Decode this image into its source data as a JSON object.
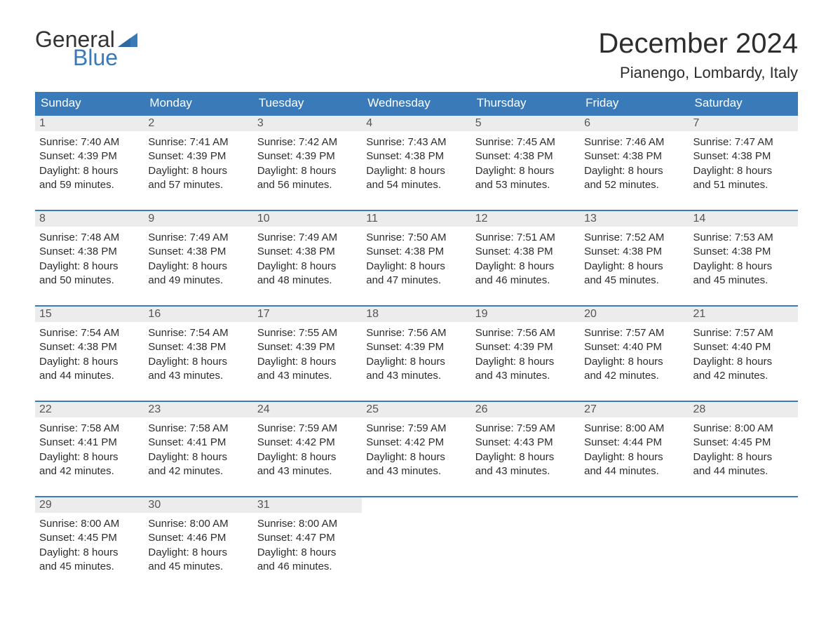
{
  "brand": {
    "general": "General",
    "blue": "Blue",
    "flag_color": "#3a7ab8"
  },
  "title": "December 2024",
  "location": "Pianengo, Lombardy, Italy",
  "colors": {
    "header_bg": "#3a7ab8",
    "header_text": "#ffffff",
    "daynum_bg": "#ececec",
    "daynum_text": "#555555",
    "body_text": "#2d2d2d",
    "border": "#3a7ab8",
    "page_bg": "#ffffff"
  },
  "weekdays": [
    "Sunday",
    "Monday",
    "Tuesday",
    "Wednesday",
    "Thursday",
    "Friday",
    "Saturday"
  ],
  "weeks": [
    [
      {
        "n": "1",
        "sunrise": "Sunrise: 7:40 AM",
        "sunset": "Sunset: 4:39 PM",
        "d1": "Daylight: 8 hours",
        "d2": "and 59 minutes."
      },
      {
        "n": "2",
        "sunrise": "Sunrise: 7:41 AM",
        "sunset": "Sunset: 4:39 PM",
        "d1": "Daylight: 8 hours",
        "d2": "and 57 minutes."
      },
      {
        "n": "3",
        "sunrise": "Sunrise: 7:42 AM",
        "sunset": "Sunset: 4:39 PM",
        "d1": "Daylight: 8 hours",
        "d2": "and 56 minutes."
      },
      {
        "n": "4",
        "sunrise": "Sunrise: 7:43 AM",
        "sunset": "Sunset: 4:38 PM",
        "d1": "Daylight: 8 hours",
        "d2": "and 54 minutes."
      },
      {
        "n": "5",
        "sunrise": "Sunrise: 7:45 AM",
        "sunset": "Sunset: 4:38 PM",
        "d1": "Daylight: 8 hours",
        "d2": "and 53 minutes."
      },
      {
        "n": "6",
        "sunrise": "Sunrise: 7:46 AM",
        "sunset": "Sunset: 4:38 PM",
        "d1": "Daylight: 8 hours",
        "d2": "and 52 minutes."
      },
      {
        "n": "7",
        "sunrise": "Sunrise: 7:47 AM",
        "sunset": "Sunset: 4:38 PM",
        "d1": "Daylight: 8 hours",
        "d2": "and 51 minutes."
      }
    ],
    [
      {
        "n": "8",
        "sunrise": "Sunrise: 7:48 AM",
        "sunset": "Sunset: 4:38 PM",
        "d1": "Daylight: 8 hours",
        "d2": "and 50 minutes."
      },
      {
        "n": "9",
        "sunrise": "Sunrise: 7:49 AM",
        "sunset": "Sunset: 4:38 PM",
        "d1": "Daylight: 8 hours",
        "d2": "and 49 minutes."
      },
      {
        "n": "10",
        "sunrise": "Sunrise: 7:49 AM",
        "sunset": "Sunset: 4:38 PM",
        "d1": "Daylight: 8 hours",
        "d2": "and 48 minutes."
      },
      {
        "n": "11",
        "sunrise": "Sunrise: 7:50 AM",
        "sunset": "Sunset: 4:38 PM",
        "d1": "Daylight: 8 hours",
        "d2": "and 47 minutes."
      },
      {
        "n": "12",
        "sunrise": "Sunrise: 7:51 AM",
        "sunset": "Sunset: 4:38 PM",
        "d1": "Daylight: 8 hours",
        "d2": "and 46 minutes."
      },
      {
        "n": "13",
        "sunrise": "Sunrise: 7:52 AM",
        "sunset": "Sunset: 4:38 PM",
        "d1": "Daylight: 8 hours",
        "d2": "and 45 minutes."
      },
      {
        "n": "14",
        "sunrise": "Sunrise: 7:53 AM",
        "sunset": "Sunset: 4:38 PM",
        "d1": "Daylight: 8 hours",
        "d2": "and 45 minutes."
      }
    ],
    [
      {
        "n": "15",
        "sunrise": "Sunrise: 7:54 AM",
        "sunset": "Sunset: 4:38 PM",
        "d1": "Daylight: 8 hours",
        "d2": "and 44 minutes."
      },
      {
        "n": "16",
        "sunrise": "Sunrise: 7:54 AM",
        "sunset": "Sunset: 4:38 PM",
        "d1": "Daylight: 8 hours",
        "d2": "and 43 minutes."
      },
      {
        "n": "17",
        "sunrise": "Sunrise: 7:55 AM",
        "sunset": "Sunset: 4:39 PM",
        "d1": "Daylight: 8 hours",
        "d2": "and 43 minutes."
      },
      {
        "n": "18",
        "sunrise": "Sunrise: 7:56 AM",
        "sunset": "Sunset: 4:39 PM",
        "d1": "Daylight: 8 hours",
        "d2": "and 43 minutes."
      },
      {
        "n": "19",
        "sunrise": "Sunrise: 7:56 AM",
        "sunset": "Sunset: 4:39 PM",
        "d1": "Daylight: 8 hours",
        "d2": "and 43 minutes."
      },
      {
        "n": "20",
        "sunrise": "Sunrise: 7:57 AM",
        "sunset": "Sunset: 4:40 PM",
        "d1": "Daylight: 8 hours",
        "d2": "and 42 minutes."
      },
      {
        "n": "21",
        "sunrise": "Sunrise: 7:57 AM",
        "sunset": "Sunset: 4:40 PM",
        "d1": "Daylight: 8 hours",
        "d2": "and 42 minutes."
      }
    ],
    [
      {
        "n": "22",
        "sunrise": "Sunrise: 7:58 AM",
        "sunset": "Sunset: 4:41 PM",
        "d1": "Daylight: 8 hours",
        "d2": "and 42 minutes."
      },
      {
        "n": "23",
        "sunrise": "Sunrise: 7:58 AM",
        "sunset": "Sunset: 4:41 PM",
        "d1": "Daylight: 8 hours",
        "d2": "and 42 minutes."
      },
      {
        "n": "24",
        "sunrise": "Sunrise: 7:59 AM",
        "sunset": "Sunset: 4:42 PM",
        "d1": "Daylight: 8 hours",
        "d2": "and 43 minutes."
      },
      {
        "n": "25",
        "sunrise": "Sunrise: 7:59 AM",
        "sunset": "Sunset: 4:42 PM",
        "d1": "Daylight: 8 hours",
        "d2": "and 43 minutes."
      },
      {
        "n": "26",
        "sunrise": "Sunrise: 7:59 AM",
        "sunset": "Sunset: 4:43 PM",
        "d1": "Daylight: 8 hours",
        "d2": "and 43 minutes."
      },
      {
        "n": "27",
        "sunrise": "Sunrise: 8:00 AM",
        "sunset": "Sunset: 4:44 PM",
        "d1": "Daylight: 8 hours",
        "d2": "and 44 minutes."
      },
      {
        "n": "28",
        "sunrise": "Sunrise: 8:00 AM",
        "sunset": "Sunset: 4:45 PM",
        "d1": "Daylight: 8 hours",
        "d2": "and 44 minutes."
      }
    ],
    [
      {
        "n": "29",
        "sunrise": "Sunrise: 8:00 AM",
        "sunset": "Sunset: 4:45 PM",
        "d1": "Daylight: 8 hours",
        "d2": "and 45 minutes."
      },
      {
        "n": "30",
        "sunrise": "Sunrise: 8:00 AM",
        "sunset": "Sunset: 4:46 PM",
        "d1": "Daylight: 8 hours",
        "d2": "and 45 minutes."
      },
      {
        "n": "31",
        "sunrise": "Sunrise: 8:00 AM",
        "sunset": "Sunset: 4:47 PM",
        "d1": "Daylight: 8 hours",
        "d2": "and 46 minutes."
      },
      null,
      null,
      null,
      null
    ]
  ]
}
